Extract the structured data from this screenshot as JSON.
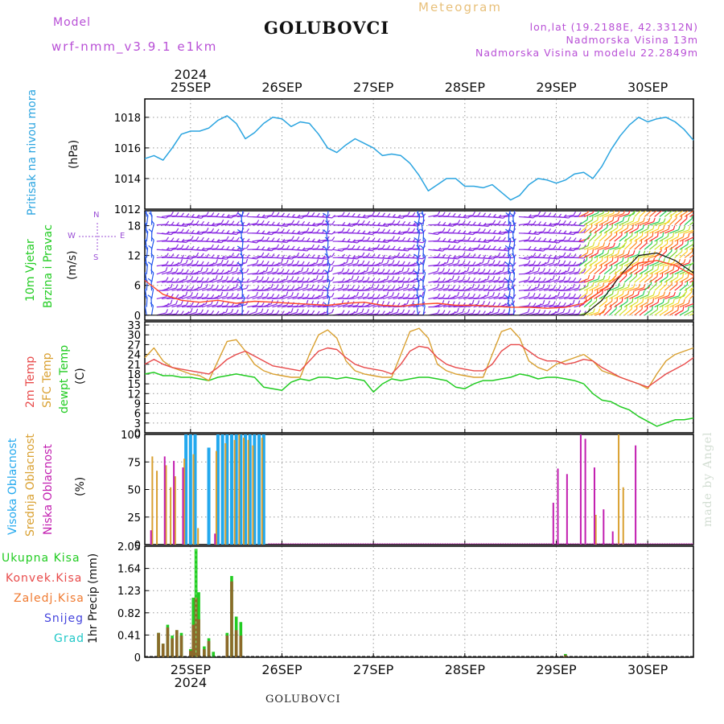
{
  "header": {
    "station": "GOLUBOVCI",
    "model_label": "Model",
    "model_name": "wrf-nmm_v3.9.1 e1km",
    "meteogram": "Meteogram",
    "lonlat": "lon,lat (19.2188E, 42.3312N)",
    "elevation": "Nadmorska Visina 13m",
    "model_elevation": "Nadmorska Visina u modelu 22.2849m",
    "footer_station": "GOLUBOVCI",
    "watermark": "made by Angel"
  },
  "time_axis": {
    "year_top": "2024",
    "year_bottom": "2024",
    "days": [
      "25SEP",
      "26SEP",
      "27SEP",
      "28SEP",
      "29SEP",
      "30SEP"
    ],
    "range_days": [
      -0.5,
      5.5
    ]
  },
  "colors": {
    "pressure": "#2aa4e0",
    "wind_low": "#2255ee",
    "wind_mid": "#8a2be2",
    "temp2m": "#e84a4a",
    "sfc": "#d9a030",
    "dewpt": "#22cc22",
    "cloud_high": "#22a8ee",
    "cloud_mid": "#d9a030",
    "cloud_low": "#c21eb0",
    "precip_total": "#22cc22",
    "precip_conv": "#e84a4a",
    "snow": "#4444dd",
    "hail": "#22c8c8"
  },
  "chart_data": [
    {
      "type": "line",
      "id": "pressure",
      "ylabel": "Pritisak na nivou mora",
      "unit": "(hPa)",
      "ylim": [
        1012,
        1019.2
      ],
      "yticks": [
        1012,
        1014,
        1016,
        1018
      ],
      "grid": true,
      "x": [
        -0.5,
        -0.4,
        -0.3,
        -0.2,
        -0.1,
        0.0,
        0.1,
        0.2,
        0.3,
        0.4,
        0.5,
        0.6,
        0.7,
        0.8,
        0.9,
        1.0,
        1.1,
        1.2,
        1.3,
        1.4,
        1.5,
        1.6,
        1.7,
        1.8,
        1.9,
        2.0,
        2.1,
        2.2,
        2.3,
        2.4,
        2.5,
        2.6,
        2.7,
        2.8,
        2.9,
        3.0,
        3.1,
        3.2,
        3.3,
        3.4,
        3.5,
        3.6,
        3.7,
        3.8,
        3.9,
        4.0,
        4.1,
        4.2,
        4.3,
        4.4,
        4.5,
        4.6,
        4.7,
        4.8,
        4.9,
        5.0,
        5.1,
        5.2,
        5.3,
        5.4,
        5.5
      ],
      "series": [
        {
          "name": "",
          "values": [
            1015.3,
            1015.5,
            1015.2,
            1016.0,
            1016.9,
            1017.1,
            1017.1,
            1017.3,
            1017.8,
            1018.1,
            1017.6,
            1016.6,
            1017.0,
            1017.6,
            1018.0,
            1017.9,
            1017.4,
            1017.7,
            1017.6,
            1016.9,
            1016.0,
            1015.7,
            1016.2,
            1016.6,
            1016.3,
            1016.0,
            1015.5,
            1015.6,
            1015.5,
            1015.0,
            1014.2,
            1013.2,
            1013.6,
            1014.0,
            1014.0,
            1013.5,
            1013.5,
            1013.4,
            1013.6,
            1013.1,
            1012.6,
            1012.9,
            1013.6,
            1014.0,
            1013.9,
            1013.7,
            1013.9,
            1014.3,
            1014.4,
            1014.0,
            1014.8,
            1015.9,
            1016.8,
            1017.5,
            1018.0,
            1017.7,
            1017.9,
            1018.0,
            1017.7,
            1017.2,
            1016.5
          ]
        }
      ]
    },
    {
      "type": "line",
      "id": "wind",
      "ylabel": "10m Vjetar",
      "ylabel2": "Brzina i Pravac",
      "unit": "(m/s)",
      "compass": {
        "n": "N",
        "s": "S",
        "e": "E",
        "w": "W"
      },
      "ylim": [
        -1,
        21
      ],
      "yticks": [
        0,
        6,
        12,
        18
      ],
      "grid": true,
      "x": [
        -0.5,
        -0.3,
        -0.1,
        0.1,
        0.3,
        0.5,
        0.7,
        0.9,
        1.1,
        1.3,
        1.5,
        1.7,
        1.9,
        2.1,
        2.3,
        2.5,
        2.7,
        2.9,
        3.1,
        3.3,
        3.5,
        3.7,
        3.9,
        4.1,
        4.3,
        4.5,
        4.7,
        4.9,
        5.1,
        5.3,
        5.5
      ],
      "series": [
        {
          "name": "",
          "values": [
            7.0,
            4.2,
            3.0,
            2.6,
            3.0,
            2.4,
            2.8,
            2.6,
            2.4,
            2.2,
            2.0,
            2.4,
            2.6,
            2.0,
            1.8,
            2.2,
            2.4,
            2.0,
            2.0,
            1.8,
            1.6,
            1.6,
            1.4,
            1.6,
            2.4,
            5.0,
            8.0,
            10.5,
            11.0,
            10.0,
            8.0
          ]
        },
        {
          "name": "",
          "values": [
            0.0,
            0.0,
            0.0,
            0.0,
            0.0,
            0.0,
            0.0,
            0.0,
            0.0,
            0.0,
            0.0,
            0.0,
            0.0,
            0.0,
            0.0,
            0.0,
            0.0,
            0.0,
            0.0,
            0.0,
            0.0,
            0.0,
            0.0,
            0.0,
            0.0,
            3.0,
            8.0,
            12.0,
            12.5,
            11.0,
            8.5
          ]
        }
      ]
    },
    {
      "type": "line",
      "id": "temperature",
      "ylabel": "2m Temp",
      "ylabel2": "SFC Temp",
      "ylabel3": "dewpt Temp",
      "unit": "(C)",
      "ylim": [
        0,
        34
      ],
      "yticks": [
        0,
        3,
        6,
        9,
        12,
        15,
        18,
        21,
        24,
        27,
        30,
        33
      ],
      "grid": true,
      "x": [
        -0.5,
        -0.4,
        -0.3,
        -0.2,
        -0.1,
        0.0,
        0.1,
        0.2,
        0.3,
        0.4,
        0.5,
        0.6,
        0.7,
        0.8,
        0.9,
        1.0,
        1.1,
        1.2,
        1.3,
        1.4,
        1.5,
        1.6,
        1.7,
        1.8,
        1.9,
        2.0,
        2.1,
        2.2,
        2.3,
        2.4,
        2.5,
        2.6,
        2.7,
        2.8,
        2.9,
        3.0,
        3.1,
        3.2,
        3.3,
        3.4,
        3.5,
        3.6,
        3.7,
        3.8,
        3.9,
        4.0,
        4.1,
        4.2,
        4.3,
        4.4,
        4.5,
        4.6,
        4.7,
        4.8,
        4.9,
        5.0,
        5.1,
        5.2,
        5.3,
        5.4,
        5.5
      ],
      "series": [
        {
          "name": "",
          "values": [
            21.0,
            22.5,
            21.0,
            20.0,
            19.5,
            19.0,
            18.5,
            18.0,
            20.0,
            22.5,
            24.0,
            25.0,
            23.5,
            22.0,
            20.5,
            20.0,
            19.5,
            19.0,
            22.0,
            25.0,
            26.0,
            25.5,
            23.0,
            21.0,
            20.0,
            19.5,
            19.0,
            18.0,
            21.0,
            25.0,
            26.5,
            26.0,
            23.0,
            21.0,
            20.0,
            19.5,
            19.0,
            19.0,
            21.0,
            25.0,
            27.0,
            27.0,
            25.0,
            23.0,
            22.0,
            22.0,
            21.0,
            21.5,
            22.5,
            22.0,
            20.0,
            18.5,
            17.0,
            16.0,
            15.0,
            14.0,
            16.0,
            18.0,
            19.5,
            21.0,
            23.0
          ]
        },
        {
          "name": "",
          "values": [
            23.0,
            26.0,
            22.0,
            20.0,
            19.0,
            18.0,
            17.5,
            16.0,
            22.0,
            28.0,
            28.5,
            25.0,
            21.0,
            19.0,
            18.0,
            17.5,
            17.0,
            17.0,
            24.0,
            30.0,
            31.5,
            29.0,
            22.0,
            19.0,
            18.0,
            17.5,
            17.0,
            17.0,
            24.0,
            31.0,
            32.0,
            29.0,
            21.0,
            19.0,
            18.0,
            17.5,
            17.0,
            17.0,
            24.0,
            31.0,
            32.0,
            29.0,
            22.0,
            20.0,
            19.0,
            21.0,
            22.0,
            23.0,
            24.0,
            22.0,
            19.0,
            18.0,
            17.0,
            16.0,
            15.0,
            13.5,
            18.0,
            22.0,
            24.0,
            25.0,
            26.0
          ]
        },
        {
          "name": "",
          "values": [
            18.0,
            18.5,
            17.5,
            17.5,
            17.0,
            17.0,
            16.5,
            16.0,
            17.0,
            17.5,
            18.0,
            17.5,
            17.0,
            14.0,
            13.5,
            13.0,
            15.5,
            16.5,
            16.0,
            17.0,
            17.0,
            16.5,
            17.0,
            16.5,
            16.0,
            12.5,
            15.0,
            16.5,
            16.0,
            16.5,
            17.0,
            17.0,
            16.5,
            16.0,
            14.0,
            13.5,
            15.0,
            16.0,
            16.0,
            16.5,
            17.0,
            18.0,
            17.5,
            16.5,
            17.0,
            17.0,
            16.5,
            16.0,
            15.0,
            12.0,
            10.0,
            9.5,
            8.0,
            7.0,
            5.0,
            3.5,
            2.0,
            3.0,
            4.0,
            4.0,
            4.5
          ]
        }
      ]
    },
    {
      "type": "bar",
      "id": "clouds",
      "ylabel": "Visoka Oblacnost",
      "ylabel2": "Srednja Oblacnost",
      "ylabel3": "Niska Oblacnost",
      "unit": "(%)",
      "ylim": [
        0,
        100
      ],
      "yticks": [
        0,
        25,
        50,
        75,
        100
      ],
      "grid": true,
      "x": [
        -0.45,
        -0.4,
        -0.35,
        -0.3,
        -0.25,
        -0.2,
        -0.15,
        -0.1,
        -0.05,
        0.0,
        0.05,
        0.1,
        0.15,
        0.2,
        0.25,
        0.3,
        0.35,
        0.4,
        0.45,
        0.5,
        0.55,
        0.6,
        0.65,
        0.7,
        0.75,
        0.8,
        3.95,
        4.0,
        4.1,
        4.2,
        4.25,
        4.3,
        4.4,
        4.45,
        4.5,
        4.6,
        4.7,
        4.75,
        4.85
      ],
      "series": [
        {
          "name": "",
          "values": [
            0,
            0,
            0,
            0,
            0,
            0,
            0,
            0,
            100,
            100,
            100,
            0,
            0,
            88,
            0,
            100,
            100,
            100,
            100,
            100,
            100,
            100,
            100,
            100,
            100,
            100,
            0,
            0,
            0,
            0,
            0,
            0,
            0,
            0,
            0,
            0,
            0,
            0,
            0
          ]
        },
        {
          "name": "",
          "values": [
            0,
            80,
            67,
            0,
            72,
            52,
            62,
            0,
            78,
            0,
            82,
            15,
            0,
            0,
            0,
            85,
            0,
            92,
            0,
            95,
            100,
            97,
            95,
            90,
            0,
            97,
            0,
            0,
            0,
            0,
            0,
            0,
            0,
            27,
            0,
            0,
            100,
            52,
            0
          ]
        },
        {
          "name": "",
          "values": [
            13,
            0,
            0,
            80,
            0,
            76,
            0,
            70,
            0,
            0,
            0,
            0,
            0,
            0,
            10,
            0,
            0,
            0,
            0,
            0,
            0,
            0,
            0,
            0,
            0,
            0,
            38,
            69,
            64,
            0,
            100,
            96,
            70,
            0,
            32,
            12,
            0,
            0,
            90
          ]
        }
      ]
    },
    {
      "type": "bar",
      "id": "precipitation",
      "ylabel": "1hr Precip",
      "unit": "(mm)",
      "legend": [
        "Ukupna Kisa",
        "Konvek.Kisa",
        "Zaledj.Kisa",
        "Snijeg",
        "Grad"
      ],
      "ylim": [
        0,
        2.05
      ],
      "yticks": [
        0,
        0.41,
        0.82,
        1.23,
        1.64,
        2.05
      ],
      "grid": true,
      "x": [
        -0.35,
        -0.3,
        -0.25,
        -0.2,
        -0.15,
        -0.1,
        -0.05,
        0.0,
        0.03,
        0.06,
        0.09,
        0.15,
        0.2,
        0.25,
        0.3,
        0.4,
        0.45,
        0.5,
        0.55,
        0.6,
        4.1
      ],
      "series": [
        {
          "name": "",
          "values": [
            0.45,
            0.25,
            0.6,
            0.4,
            0.5,
            0.45,
            0.0,
            0.15,
            1.1,
            2.0,
            1.2,
            0.2,
            0.35,
            0.1,
            0.0,
            0.45,
            1.5,
            0.75,
            0.65,
            0.0,
            0.06
          ]
        },
        {
          "name": "",
          "values": [
            0.45,
            0.25,
            0.55,
            0.35,
            0.5,
            0.4,
            0.0,
            0.12,
            0.6,
            1.1,
            0.7,
            0.15,
            0.3,
            0.0,
            0.0,
            0.4,
            1.4,
            0.5,
            0.4,
            0.0,
            0.04
          ]
        }
      ]
    }
  ]
}
